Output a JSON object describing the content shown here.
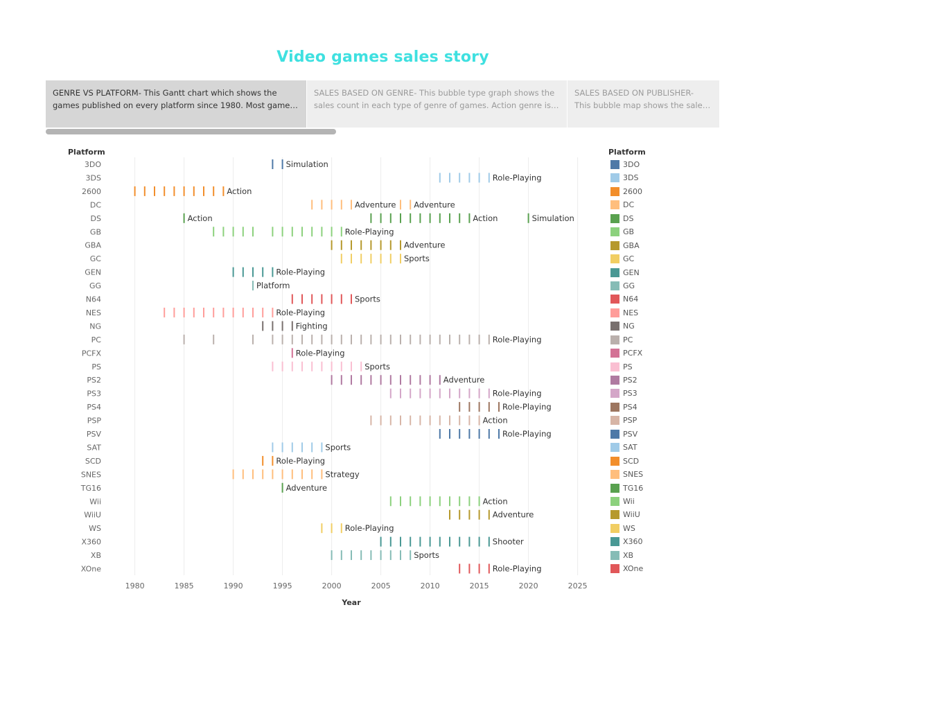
{
  "story": {
    "title": "Video games sales story",
    "points": [
      {
        "label": "GENRE VS PLATFORM-  This Gantt chart which shows the games published on every platform since 1980. Most games are publis..",
        "selected": true
      },
      {
        "label": "SALES BASED ON GENRE-  This bubble type graph shows the sales count in each type of genre of games. Action genre is  mos..",
        "selected": false
      },
      {
        "label": "SALES BASED ON PUBLISHER-  This bubble map shows the sales by each ..",
        "selected": false
      }
    ]
  },
  "chart_data": {
    "type": "gantt",
    "title": "",
    "xlabel": "Year",
    "ylabel": "Platform",
    "xlim": [
      1977,
      2027
    ],
    "x_ticks": [
      1980,
      1985,
      1990,
      1995,
      2000,
      2005,
      2010,
      2015,
      2020,
      2025
    ],
    "grid": true,
    "legend": {
      "title": "Platform",
      "placement": "right"
    },
    "rows": [
      {
        "platform": "3DO",
        "color": "#4e79a7",
        "years": [
          1994,
          1995
        ],
        "labels": [
          {
            "year": 1995,
            "text": "Simulation"
          }
        ]
      },
      {
        "platform": "3DS",
        "color": "#a0cbe8",
        "years": [
          2011,
          2012,
          2013,
          2014,
          2015,
          2016
        ],
        "labels": [
          {
            "year": 2016,
            "text": "Role-Playing"
          }
        ]
      },
      {
        "platform": "2600",
        "color": "#f28e2b",
        "years": [
          1980,
          1981,
          1982,
          1983,
          1984,
          1985,
          1986,
          1987,
          1988,
          1989
        ],
        "labels": [
          {
            "year": 1989,
            "text": "Action"
          }
        ]
      },
      {
        "platform": "DC",
        "color": "#ffbe7d",
        "years": [
          1998,
          1999,
          2000,
          2001,
          2002,
          2007,
          2008
        ],
        "labels": [
          {
            "year": 2002,
            "text": "Adventure"
          },
          {
            "year": 2008,
            "text": "Adventure"
          }
        ]
      },
      {
        "platform": "DS",
        "color": "#59a14f",
        "years": [
          1985,
          2004,
          2005,
          2006,
          2007,
          2008,
          2009,
          2010,
          2011,
          2012,
          2013,
          2014,
          2020
        ],
        "labels": [
          {
            "year": 1985,
            "text": "Action"
          },
          {
            "year": 2014,
            "text": "Action"
          },
          {
            "year": 2020,
            "text": "Simulation"
          }
        ]
      },
      {
        "platform": "GB",
        "color": "#8cd17d",
        "years": [
          1988,
          1989,
          1990,
          1991,
          1992,
          1994,
          1995,
          1996,
          1997,
          1998,
          1999,
          2000,
          2001
        ],
        "labels": [
          {
            "year": 2001,
            "text": "Role-Playing"
          }
        ]
      },
      {
        "platform": "GBA",
        "color": "#b6992d",
        "years": [
          2000,
          2001,
          2002,
          2003,
          2004,
          2005,
          2006,
          2007
        ],
        "labels": [
          {
            "year": 2007,
            "text": "Adventure"
          }
        ]
      },
      {
        "platform": "GC",
        "color": "#f1ce63",
        "years": [
          2001,
          2002,
          2003,
          2004,
          2005,
          2006,
          2007
        ],
        "labels": [
          {
            "year": 2007,
            "text": "Sports"
          }
        ]
      },
      {
        "platform": "GEN",
        "color": "#499894",
        "years": [
          1990,
          1991,
          1992,
          1993,
          1994
        ],
        "labels": [
          {
            "year": 1994,
            "text": "Role-Playing"
          }
        ]
      },
      {
        "platform": "GG",
        "color": "#86bcb6",
        "years": [
          1992
        ],
        "labels": [
          {
            "year": 1992,
            "text": "Platform"
          }
        ]
      },
      {
        "platform": "N64",
        "color": "#e15759",
        "years": [
          1996,
          1997,
          1998,
          1999,
          2000,
          2001,
          2002
        ],
        "labels": [
          {
            "year": 2002,
            "text": "Sports"
          }
        ]
      },
      {
        "platform": "NES",
        "color": "#ff9d9a",
        "years": [
          1983,
          1984,
          1985,
          1986,
          1987,
          1988,
          1989,
          1990,
          1991,
          1992,
          1993,
          1994
        ],
        "labels": [
          {
            "year": 1994,
            "text": "Role-Playing"
          }
        ]
      },
      {
        "platform": "NG",
        "color": "#79706e",
        "years": [
          1993,
          1994,
          1995,
          1996
        ],
        "labels": [
          {
            "year": 1996,
            "text": "Fighting"
          }
        ]
      },
      {
        "platform": "PC",
        "color": "#bab0ac",
        "years": [
          1985,
          1988,
          1992,
          1994,
          1995,
          1996,
          1997,
          1998,
          1999,
          2000,
          2001,
          2002,
          2003,
          2004,
          2005,
          2006,
          2007,
          2008,
          2009,
          2010,
          2011,
          2012,
          2013,
          2014,
          2015,
          2016
        ],
        "labels": [
          {
            "year": 2016,
            "text": "Role-Playing"
          }
        ]
      },
      {
        "platform": "PCFX",
        "color": "#d37295",
        "years": [
          1996
        ],
        "labels": [
          {
            "year": 1996,
            "text": "Role-Playing"
          }
        ]
      },
      {
        "platform": "PS",
        "color": "#fabfd2",
        "years": [
          1994,
          1995,
          1996,
          1997,
          1998,
          1999,
          2000,
          2001,
          2002,
          2003
        ],
        "labels": [
          {
            "year": 2003,
            "text": "Sports"
          }
        ]
      },
      {
        "platform": "PS2",
        "color": "#b07aa1",
        "years": [
          2000,
          2001,
          2002,
          2003,
          2004,
          2005,
          2006,
          2007,
          2008,
          2009,
          2010,
          2011
        ],
        "labels": [
          {
            "year": 2011,
            "text": "Adventure"
          }
        ]
      },
      {
        "platform": "PS3",
        "color": "#d4a6c8",
        "years": [
          2006,
          2007,
          2008,
          2009,
          2010,
          2011,
          2012,
          2013,
          2014,
          2015,
          2016
        ],
        "labels": [
          {
            "year": 2016,
            "text": "Role-Playing"
          }
        ]
      },
      {
        "platform": "PS4",
        "color": "#9d7660",
        "years": [
          2013,
          2014,
          2015,
          2016,
          2017
        ],
        "labels": [
          {
            "year": 2017,
            "text": "Role-Playing"
          }
        ]
      },
      {
        "platform": "PSP",
        "color": "#d7b5a6",
        "years": [
          2004,
          2005,
          2006,
          2007,
          2008,
          2009,
          2010,
          2011,
          2012,
          2013,
          2014,
          2015
        ],
        "labels": [
          {
            "year": 2015,
            "text": "Action"
          }
        ]
      },
      {
        "platform": "PSV",
        "color": "#4e79a7",
        "years": [
          2011,
          2012,
          2013,
          2014,
          2015,
          2016,
          2017
        ],
        "labels": [
          {
            "year": 2017,
            "text": "Role-Playing"
          }
        ]
      },
      {
        "platform": "SAT",
        "color": "#a0cbe8",
        "years": [
          1994,
          1995,
          1996,
          1997,
          1998,
          1999
        ],
        "labels": [
          {
            "year": 1999,
            "text": "Sports"
          }
        ]
      },
      {
        "platform": "SCD",
        "color": "#f28e2b",
        "years": [
          1993,
          1994
        ],
        "labels": [
          {
            "year": 1994,
            "text": "Role-Playing"
          }
        ]
      },
      {
        "platform": "SNES",
        "color": "#ffbe7d",
        "years": [
          1990,
          1991,
          1992,
          1993,
          1994,
          1995,
          1996,
          1997,
          1998,
          1999
        ],
        "labels": [
          {
            "year": 1999,
            "text": "Strategy"
          }
        ]
      },
      {
        "platform": "TG16",
        "color": "#59a14f",
        "years": [
          1995
        ],
        "labels": [
          {
            "year": 1995,
            "text": "Adventure"
          }
        ]
      },
      {
        "platform": "Wii",
        "color": "#8cd17d",
        "years": [
          2006,
          2007,
          2008,
          2009,
          2010,
          2011,
          2012,
          2013,
          2014,
          2015
        ],
        "labels": [
          {
            "year": 2015,
            "text": "Action"
          }
        ]
      },
      {
        "platform": "WiiU",
        "color": "#b6992d",
        "years": [
          2012,
          2013,
          2014,
          2015,
          2016
        ],
        "labels": [
          {
            "year": 2016,
            "text": "Adventure"
          }
        ]
      },
      {
        "platform": "WS",
        "color": "#f1ce63",
        "years": [
          1999,
          2000,
          2001
        ],
        "labels": [
          {
            "year": 2001,
            "text": "Role-Playing"
          }
        ]
      },
      {
        "platform": "X360",
        "color": "#499894",
        "years": [
          2005,
          2006,
          2007,
          2008,
          2009,
          2010,
          2011,
          2012,
          2013,
          2014,
          2015,
          2016
        ],
        "labels": [
          {
            "year": 2016,
            "text": "Shooter"
          }
        ]
      },
      {
        "platform": "XB",
        "color": "#86bcb6",
        "years": [
          2000,
          2001,
          2002,
          2003,
          2004,
          2005,
          2006,
          2007,
          2008
        ],
        "labels": [
          {
            "year": 2008,
            "text": "Sports"
          }
        ]
      },
      {
        "platform": "XOne",
        "color": "#e15759",
        "years": [
          2013,
          2014,
          2015,
          2016
        ],
        "labels": [
          {
            "year": 2016,
            "text": "Role-Playing"
          }
        ]
      }
    ]
  }
}
